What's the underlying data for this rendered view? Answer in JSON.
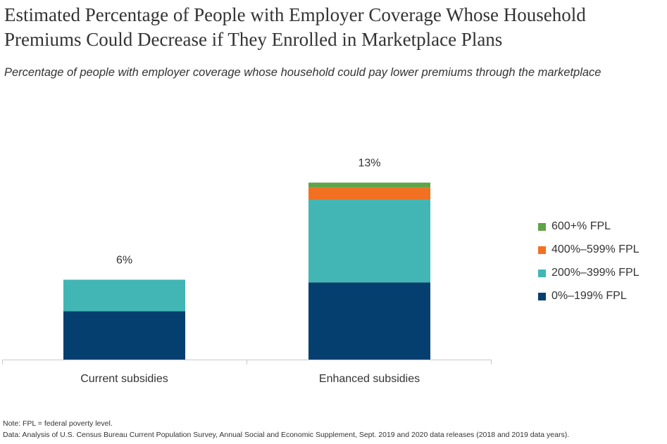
{
  "chart_data": {
    "type": "bar",
    "stacked": true,
    "title": "Estimated Percentage of People with Employer Coverage Whose Household Premiums Could Decrease if They Enrolled in Marketplace Plans",
    "subtitle": "Percentage of people with employer coverage whose household could pay lower premiums through the marketplace",
    "categories": [
      "Current subsidies",
      "Enhanced subsidies"
    ],
    "totals_labels": [
      "6%",
      "13%"
    ],
    "series": [
      {
        "name": "0%–199% FPL",
        "color": "#043f6f",
        "values": [
          3.5,
          5.6
        ]
      },
      {
        "name": "200%–399% FPL",
        "color": "#42b6b4",
        "values": [
          2.3,
          6.0
        ]
      },
      {
        "name": "400%–599% FPL",
        "color": "#f27021",
        "values": [
          0,
          0.9
        ]
      },
      {
        "name": "600+% FPL",
        "color": "#5fa447",
        "values": [
          0,
          0.35
        ]
      }
    ],
    "legend_order": [
      "600+% FPL",
      "400%–599% FPL",
      "200%–399% FPL",
      "0%–199% FPL"
    ],
    "legend_position": "right",
    "ylim": [
      0,
      14
    ],
    "grid": false,
    "xlabel": "",
    "ylabel": ""
  },
  "notes": {
    "note": "Note: FPL = federal poverty level.",
    "data": "Data: Analysis of U.S. Census Bureau Current Population Survey, Annual Social and Economic Supplement, Sept. 2019 and 2020 data releases (2018 and 2019 data years)."
  }
}
